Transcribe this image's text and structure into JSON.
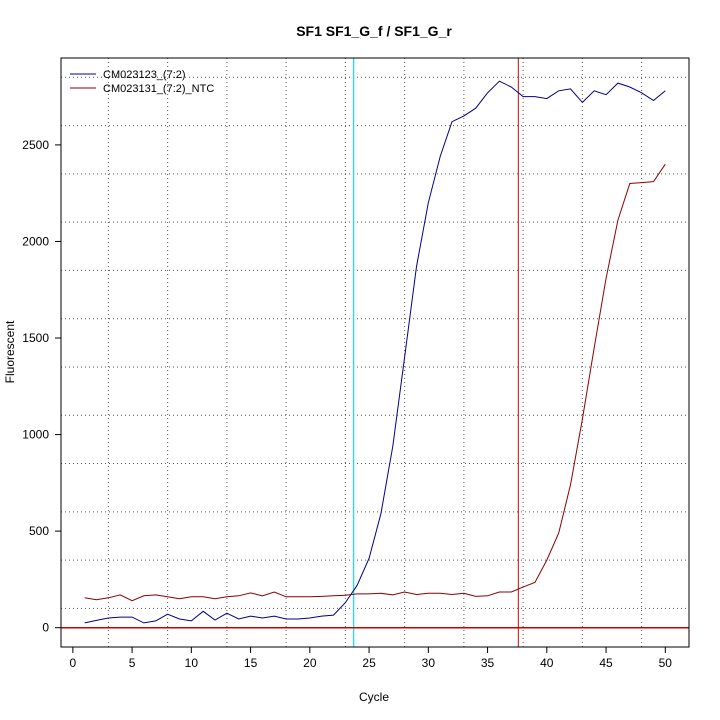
{
  "chart_data": {
    "type": "line",
    "title": "SF1  SF1_G_f / SF1_G_r",
    "xlabel": "Cycle",
    "ylabel": "Fluorescent",
    "xlim": [
      -1,
      52
    ],
    "ylim": [
      -100,
      2950
    ],
    "xticks": [
      0,
      5,
      10,
      15,
      20,
      25,
      30,
      35,
      40,
      45,
      50
    ],
    "yticks": [
      0,
      500,
      1000,
      1500,
      2000,
      2500
    ],
    "grid_x": [
      3,
      8,
      13,
      18,
      23,
      28,
      33,
      38,
      43,
      48
    ],
    "grid_y": [
      100,
      350,
      600,
      850,
      1100,
      1350,
      1600,
      1850,
      2100,
      2350,
      2600,
      2850
    ],
    "threshold_y": 0,
    "threshold_color": "#cc0000",
    "vlines": [
      {
        "x": 23.7,
        "color": "#00e5ee"
      },
      {
        "x": 37.6,
        "color": "#cd3333"
      }
    ],
    "legend_position": "top-left",
    "series": [
      {
        "name": "CM023123_(7:2)",
        "color": "#00008b",
        "x": [
          1,
          2,
          3,
          4,
          5,
          6,
          7,
          8,
          9,
          10,
          11,
          12,
          13,
          14,
          15,
          16,
          17,
          18,
          19,
          20,
          21,
          22,
          23,
          24,
          25,
          26,
          27,
          28,
          29,
          30,
          31,
          32,
          33,
          34,
          35,
          36,
          37,
          38,
          39,
          40,
          41,
          42,
          43,
          44,
          45,
          46,
          47,
          48,
          49,
          50
        ],
        "values": [
          25,
          38,
          50,
          55,
          55,
          25,
          35,
          70,
          45,
          35,
          85,
          40,
          75,
          45,
          60,
          50,
          60,
          45,
          45,
          50,
          60,
          65,
          130,
          220,
          360,
          590,
          940,
          1400,
          1870,
          2200,
          2440,
          2620,
          2650,
          2690,
          2770,
          2830,
          2800,
          2750,
          2750,
          2740,
          2780,
          2790,
          2720,
          2780,
          2760,
          2820,
          2800,
          2770,
          2730,
          2780
        ]
      },
      {
        "name": "CM023131_(7:2)_NTC",
        "color": "#8b0000",
        "x": [
          1,
          2,
          3,
          4,
          5,
          6,
          7,
          8,
          9,
          10,
          11,
          12,
          13,
          14,
          15,
          16,
          17,
          18,
          19,
          20,
          21,
          22,
          23,
          24,
          25,
          26,
          27,
          28,
          29,
          30,
          31,
          32,
          33,
          34,
          35,
          36,
          37,
          38,
          39,
          40,
          41,
          42,
          43,
          44,
          45,
          46,
          47,
          48,
          49,
          50
        ],
        "values": [
          155,
          145,
          155,
          170,
          140,
          165,
          170,
          160,
          150,
          160,
          160,
          150,
          160,
          165,
          180,
          165,
          185,
          160,
          160,
          160,
          162,
          165,
          168,
          175,
          175,
          178,
          170,
          185,
          172,
          178,
          178,
          172,
          178,
          162,
          165,
          185,
          185,
          210,
          235,
          350,
          490,
          740,
          1080,
          1450,
          1810,
          2110,
          2300,
          2305,
          2310,
          2400
        ]
      }
    ]
  }
}
